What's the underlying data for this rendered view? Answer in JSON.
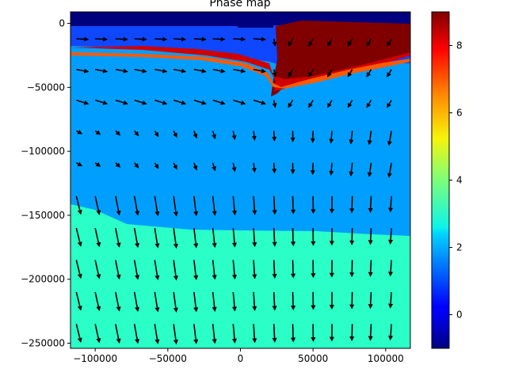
{
  "chart_data": {
    "type": "heatmap",
    "title": "Phase map",
    "xlabel": "",
    "ylabel": "",
    "xlim": [
      -117000,
      117000
    ],
    "ylim": [
      -254000,
      9000
    ],
    "x_ticks": [
      -100000,
      -50000,
      0,
      50000,
      100000
    ],
    "x_tick_labels": [
      "−100000",
      "−50000",
      "0",
      "50000",
      "100000"
    ],
    "y_ticks": [
      0,
      -50000,
      -100000,
      -150000,
      -200000,
      -250000
    ],
    "y_tick_labels": [
      "0",
      "−50000",
      "−100000",
      "−150000",
      "−200000",
      "−250000"
    ],
    "colorbar": {
      "colormap": "jet",
      "range": [
        -1,
        9
      ],
      "ticks": [
        0,
        2,
        4,
        6,
        8
      ],
      "tick_labels": [
        "0",
        "2",
        "4",
        "6",
        "8"
      ]
    },
    "phase_regions": [
      {
        "phase": -1,
        "color": "#00007f",
        "y_top": 9000,
        "y_bottom": 0
      },
      {
        "phase": 1,
        "color": "#0f47ff",
        "y_top": 0,
        "y_bottom": -20000
      },
      {
        "phase": 8.5,
        "color": "#800000",
        "x_left": 27000,
        "x_right": 117000,
        "y_top": 0,
        "y_bottom": -55000
      },
      {
        "phase": 7.5,
        "color": "#ff5a00",
        "band": "subducting slab top",
        "y_approx": -26000
      },
      {
        "phase": 8,
        "color": "#d00000",
        "band": "subducting slab",
        "y_approx": -22000
      },
      {
        "phase": 2,
        "color": "#009fff",
        "y_top": -20000,
        "y_bottom": -160000
      },
      {
        "phase": 3,
        "color": "#29ffc6",
        "y_top": -160000,
        "y_bottom": -254000
      }
    ],
    "velocity_arrows": {
      "rows_y": [
        -12000,
        -36000,
        -60000,
        -84000,
        -109000,
        -135000,
        -160000,
        -185000,
        -210000,
        -235000
      ],
      "cols_x": [
        -113000,
        -100000,
        -86000,
        -73000,
        -59000,
        -46000,
        -32000,
        -19000,
        -5000,
        9000,
        23000,
        36000,
        50000,
        63000,
        77000,
        90000,
        104000
      ]
    }
  }
}
